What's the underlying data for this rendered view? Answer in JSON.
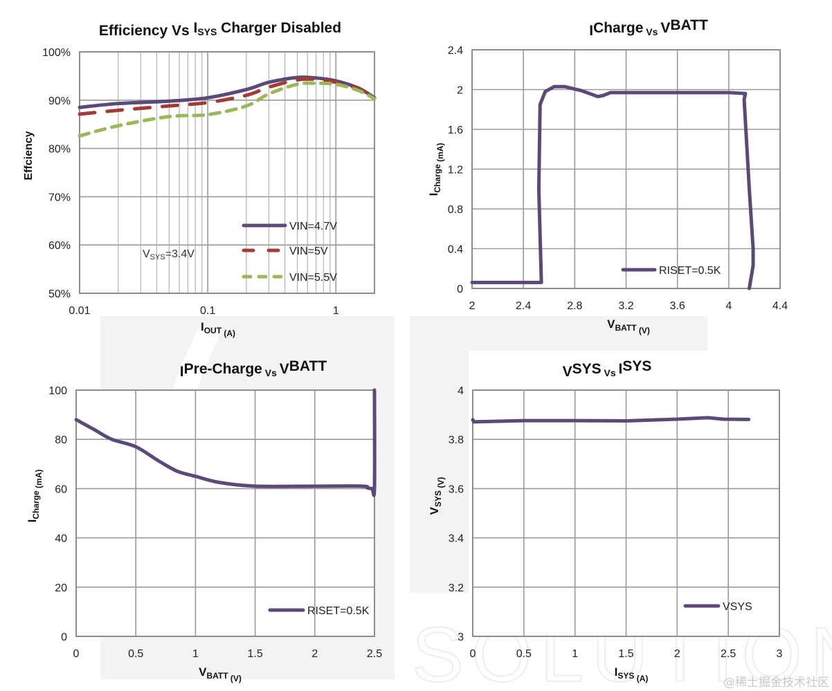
{
  "colors": {
    "purple": "#5b4a78",
    "red": "#a23a36",
    "green": "#9ab85a",
    "grid": "#9a9a9a",
    "axis": "#888888"
  },
  "watermark": "@稀土掘金技术社区",
  "background_word": "SOLUTIONS",
  "chart_data": [
    {
      "id": "efficiency",
      "type": "line",
      "title_parts": [
        "Efficiency Vs  ",
        "I",
        "SYS",
        " Charger Disabled"
      ],
      "xlabel_parts": [
        "I",
        "OUT",
        " (A)"
      ],
      "ylabel": "Effciency",
      "xscale": "log",
      "xlim": [
        0.01,
        2
      ],
      "ylim": [
        0.5,
        1.0
      ],
      "xticks": [
        0.01,
        0.1,
        1
      ],
      "xtick_labels": [
        "0.01",
        "0.1",
        "1"
      ],
      "yticks": [
        0.5,
        0.6,
        0.7,
        0.8,
        0.9,
        1.0
      ],
      "ytick_labels": [
        "50%",
        "60%",
        "70%",
        "80%",
        "90%",
        "100%"
      ],
      "grid": true,
      "annotation_parts": [
        "V",
        "SYS",
        "=3.4V"
      ],
      "legend": "bottom-right",
      "series": [
        {
          "name": "VIN=4.7V",
          "style": "solid",
          "color_key": "purple",
          "x": [
            0.01,
            0.02,
            0.05,
            0.1,
            0.2,
            0.3,
            0.5,
            0.7,
            1.0,
            1.5,
            2.0
          ],
          "y": [
            0.885,
            0.893,
            0.898,
            0.905,
            0.922,
            0.937,
            0.947,
            0.946,
            0.94,
            0.925,
            0.905
          ]
        },
        {
          "name": "VIN=5V",
          "style": "dashed",
          "color_key": "red",
          "x": [
            0.01,
            0.02,
            0.05,
            0.1,
            0.2,
            0.3,
            0.5,
            0.7,
            1.0,
            1.5,
            2.0
          ],
          "y": [
            0.871,
            0.879,
            0.888,
            0.895,
            0.91,
            0.927,
            0.942,
            0.943,
            0.937,
            0.924,
            0.905
          ]
        },
        {
          "name": "VIN=5.5V",
          "style": "dotted",
          "color_key": "green",
          "x": [
            0.01,
            0.02,
            0.05,
            0.1,
            0.2,
            0.3,
            0.5,
            0.7,
            1.0,
            1.5,
            2.0
          ],
          "y": [
            0.826,
            0.847,
            0.866,
            0.87,
            0.888,
            0.913,
            0.933,
            0.935,
            0.933,
            0.92,
            0.903
          ]
        }
      ]
    },
    {
      "id": "icharge",
      "type": "line",
      "title_parts": [
        "I",
        "Charge",
        " Vs  ",
        "V",
        "BATT",
        ""
      ],
      "xlabel_parts": [
        "V",
        "BATT",
        " (V)"
      ],
      "ylabel_parts": [
        "I",
        "Charge",
        " (mA)"
      ],
      "xlim": [
        2,
        4.4
      ],
      "ylim": [
        0,
        2.4
      ],
      "xticks": [
        2,
        2.4,
        2.8,
        3.2,
        3.6,
        4,
        4.4
      ],
      "xtick_labels": [
        "2",
        "2.4",
        "2.8",
        "3.2",
        "3.6",
        "4",
        "4.4"
      ],
      "yticks": [
        0,
        0.4,
        0.8,
        1.2,
        1.6,
        2,
        2.4
      ],
      "ytick_labels": [
        "0",
        "0.4",
        "0.8",
        "1.2",
        "1.6",
        "2",
        "2.4"
      ],
      "grid": true,
      "legend": "bottom-center",
      "series": [
        {
          "name": "RISET=0.5K",
          "style": "solid",
          "color_key": "purple",
          "x": [
            2.0,
            2.54,
            2.52,
            2.53,
            2.57,
            2.64,
            2.72,
            2.85,
            2.98,
            3.02,
            3.08,
            3.5,
            4.0,
            4.13,
            4.12,
            4.16,
            4.19,
            4.19,
            4.16
          ],
          "y": [
            0.06,
            0.06,
            1.0,
            1.85,
            1.98,
            2.03,
            2.03,
            1.99,
            1.93,
            1.94,
            1.97,
            1.97,
            1.97,
            1.96,
            1.9,
            1.0,
            0.4,
            0.23,
            0.0
          ]
        }
      ]
    },
    {
      "id": "iprecharge",
      "type": "line",
      "title_parts": [
        "I",
        "Pre-Charge",
        " Vs  ",
        "V",
        "BATT",
        ""
      ],
      "xlabel_parts": [
        "V",
        "BATT",
        " (V)"
      ],
      "ylabel_parts": [
        "I",
        "Charge",
        " (mA)"
      ],
      "xlim": [
        0,
        2.5
      ],
      "ylim": [
        0,
        100
      ],
      "xticks": [
        0,
        0.5,
        1,
        1.5,
        2,
        2.5
      ],
      "xtick_labels": [
        "0",
        "0.5",
        "1",
        "1.5",
        "2",
        "2.5"
      ],
      "yticks": [
        0,
        20,
        40,
        60,
        80,
        100
      ],
      "ytick_labels": [
        "0",
        "20",
        "40",
        "60",
        "80",
        "100"
      ],
      "grid": true,
      "legend": "bottom-right",
      "series": [
        {
          "name": "RISET=0.5K",
          "style": "solid",
          "color_key": "purple",
          "x": [
            0.0,
            0.15,
            0.3,
            0.5,
            0.7,
            0.85,
            1.0,
            1.2,
            1.5,
            2.0,
            2.4,
            2.44,
            2.48,
            2.5,
            2.5
          ],
          "y": [
            88,
            84,
            80,
            77,
            71,
            67,
            65,
            62.5,
            61,
            61,
            61,
            60.3,
            60,
            60.3,
            100
          ]
        }
      ]
    },
    {
      "id": "vsys",
      "type": "line",
      "title_parts": [
        "V",
        "SYS",
        " Vs  ",
        "I",
        "SYS",
        ""
      ],
      "xlabel_parts": [
        "I",
        "SYS",
        " (A)"
      ],
      "ylabel_parts": [
        "V",
        "SYS",
        " (V)"
      ],
      "xlim": [
        0,
        3
      ],
      "ylim": [
        3,
        4
      ],
      "xticks": [
        0,
        0.5,
        1,
        1.5,
        2,
        2.5,
        3
      ],
      "xtick_labels": [
        "0",
        "0.5",
        "1",
        "1.5",
        "2",
        "2.5",
        "3"
      ],
      "yticks": [
        3,
        3.2,
        3.4,
        3.6,
        3.8,
        4
      ],
      "ytick_labels": [
        "3",
        "3.2",
        "3.4",
        "3.6",
        "3.8",
        "4"
      ],
      "grid": true,
      "legend": "bottom-right",
      "series": [
        {
          "name": "VSYS",
          "style": "solid",
          "color_key": "purple",
          "x": [
            0.0,
            0.01,
            0.5,
            1.0,
            1.5,
            2.0,
            2.3,
            2.45,
            2.7
          ],
          "y": [
            3.88,
            3.871,
            3.876,
            3.876,
            3.875,
            3.882,
            3.888,
            3.882,
            3.881
          ]
        }
      ]
    }
  ]
}
